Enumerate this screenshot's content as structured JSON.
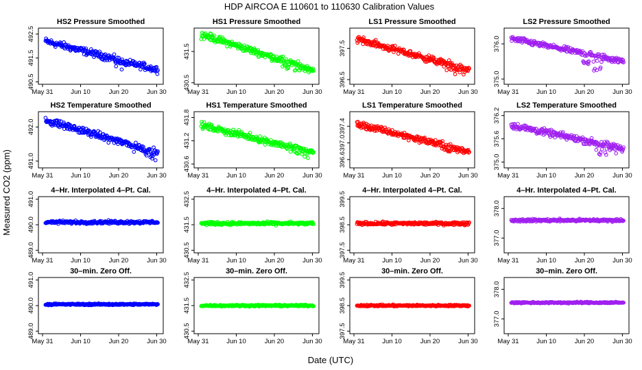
{
  "title": "HDP   AIRCOA E   110601 to 110630   Calibration Values",
  "xlabel": "Date (UTC)",
  "ylabel": "Measured CO2 (ppm)",
  "x_tick_labels": [
    "May 31",
    "Jun 10",
    "Jun 20",
    "Jun 30"
  ],
  "x_ticks_days": [
    0,
    10,
    20,
    30
  ],
  "x_range_days": [
    0,
    31
  ],
  "chart_data": [
    {
      "type": "scatter",
      "title": "HS2 Pressure Smoothed",
      "color": "#0000ff",
      "ylim": [
        490.4,
        492.75
      ],
      "yticks": [
        490.5,
        491.5,
        492.5
      ],
      "start": 492.2,
      "end": 491.0,
      "noise": 0.22,
      "dip": 0.15,
      "dip_at": 22
    },
    {
      "type": "scatter",
      "title": "HS1 Pressure Smoothed",
      "color": "#00ff00",
      "ylim": [
        430.45,
        432.25
      ],
      "yticks": [
        430.5,
        431.5
      ],
      "start": 432.05,
      "end": 430.9,
      "noise": 0.17,
      "dip": 0.12,
      "dip_at": 25
    },
    {
      "type": "scatter",
      "title": "LS1 Pressure Smoothed",
      "color": "#ff0000",
      "ylim": [
        396.35,
        398.15
      ],
      "yticks": [
        396.5,
        397.5
      ],
      "start": 397.8,
      "end": 396.8,
      "noise": 0.17,
      "dip": 0.12,
      "dip_at": 26
    },
    {
      "type": "scatter",
      "title": "LS2 Pressure Smoothed",
      "color": "#a020f0",
      "ylim": [
        374.85,
        376.45
      ],
      "yticks": [
        375.0,
        376.0
      ],
      "start": 376.15,
      "end": 375.5,
      "noise": 0.12,
      "dip": 0.3,
      "dip_at": 22
    },
    {
      "type": "scatter",
      "title": "HS2 Temperature Smoothed",
      "color": "#0000ff",
      "ylim": [
        490.8,
        492.45
      ],
      "yticks": [
        491.0,
        492.0
      ],
      "start": 492.2,
      "end": 491.25,
      "noise": 0.15,
      "dip": 0.1,
      "dip_at": 27
    },
    {
      "type": "scatter",
      "title": "HS1 Temperature Smoothed",
      "color": "#00ff00",
      "ylim": [
        430.5,
        431.95
      ],
      "yticks": [
        430.6,
        431.2,
        431.8
      ],
      "start": 431.6,
      "end": 430.9,
      "noise": 0.13,
      "dip": 0.1,
      "dip_at": 26
    },
    {
      "type": "scatter",
      "title": "LS1 Temperature Smoothed",
      "color": "#ff0000",
      "ylim": [
        396.4,
        397.75
      ],
      "yticks": [
        396.6,
        397.0,
        397.4
      ],
      "start": 397.45,
      "end": 396.8,
      "noise": 0.12,
      "dip": 0.12,
      "dip_at": 26
    },
    {
      "type": "scatter",
      "title": "LS2 Temperature Smoothed",
      "color": "#a020f0",
      "ylim": [
        374.85,
        376.3
      ],
      "yticks": [
        375.0,
        375.6,
        376.2
      ],
      "start": 375.95,
      "end": 375.35,
      "noise": 0.13,
      "dip": 0.2,
      "dip_at": 26
    },
    {
      "type": "scatter",
      "title": "4–Hr. Interpolated 4–Pt. Cal.",
      "color": "#0000ff",
      "ylim": [
        488.9,
        491.1
      ],
      "yticks": [
        489.0,
        490.0,
        491.0
      ],
      "start": 490.1,
      "end": 490.1,
      "noise": 0.09,
      "dip": 0,
      "dip_at": 0
    },
    {
      "type": "scatter",
      "title": "4–Hr. Interpolated 4–Pt. Cal.",
      "color": "#00ff00",
      "ylim": [
        430.4,
        432.6
      ],
      "yticks": [
        430.5,
        431.5,
        432.5
      ],
      "start": 431.55,
      "end": 431.55,
      "noise": 0.09,
      "dip": 0,
      "dip_at": 0
    },
    {
      "type": "scatter",
      "title": "4–Hr. Interpolated 4–Pt. Cal.",
      "color": "#ff0000",
      "ylim": [
        397.4,
        399.6
      ],
      "yticks": [
        397.5,
        398.5,
        399.5
      ],
      "start": 398.55,
      "end": 398.55,
      "noise": 0.09,
      "dip": 0,
      "dip_at": 0
    },
    {
      "type": "scatter",
      "title": "4–Hr. Interpolated 4–Pt. Cal.",
      "color": "#a020f0",
      "ylim": [
        376.5,
        378.4
      ],
      "yticks": [
        377.0,
        378.0
      ],
      "start": 377.6,
      "end": 377.6,
      "noise": 0.07,
      "dip": 0,
      "dip_at": 0
    },
    {
      "type": "scatter",
      "title": "30–min. Zero Off.",
      "color": "#0000ff",
      "ylim": [
        488.9,
        491.1
      ],
      "yticks": [
        489.0,
        490.0,
        491.0
      ],
      "start": 490.05,
      "end": 490.05,
      "noise": 0.05,
      "dip": 0,
      "dip_at": 0
    },
    {
      "type": "scatter",
      "title": "30–min. Zero Off.",
      "color": "#00ff00",
      "ylim": [
        430.4,
        432.6
      ],
      "yticks": [
        430.5,
        431.5,
        432.5
      ],
      "start": 431.5,
      "end": 431.5,
      "noise": 0.05,
      "dip": 0,
      "dip_at": 0
    },
    {
      "type": "scatter",
      "title": "30–min. Zero Off.",
      "color": "#ff0000",
      "ylim": [
        397.4,
        399.6
      ],
      "yticks": [
        397.5,
        398.5,
        399.5
      ],
      "start": 398.5,
      "end": 398.5,
      "noise": 0.05,
      "dip": 0,
      "dip_at": 0
    },
    {
      "type": "scatter",
      "title": "30–min. Zero Off.",
      "color": "#a020f0",
      "ylim": [
        376.5,
        378.4
      ],
      "yticks": [
        377.0,
        378.0
      ],
      "start": 377.55,
      "end": 377.55,
      "noise": 0.04,
      "dip": 0,
      "dip_at": 0
    }
  ]
}
